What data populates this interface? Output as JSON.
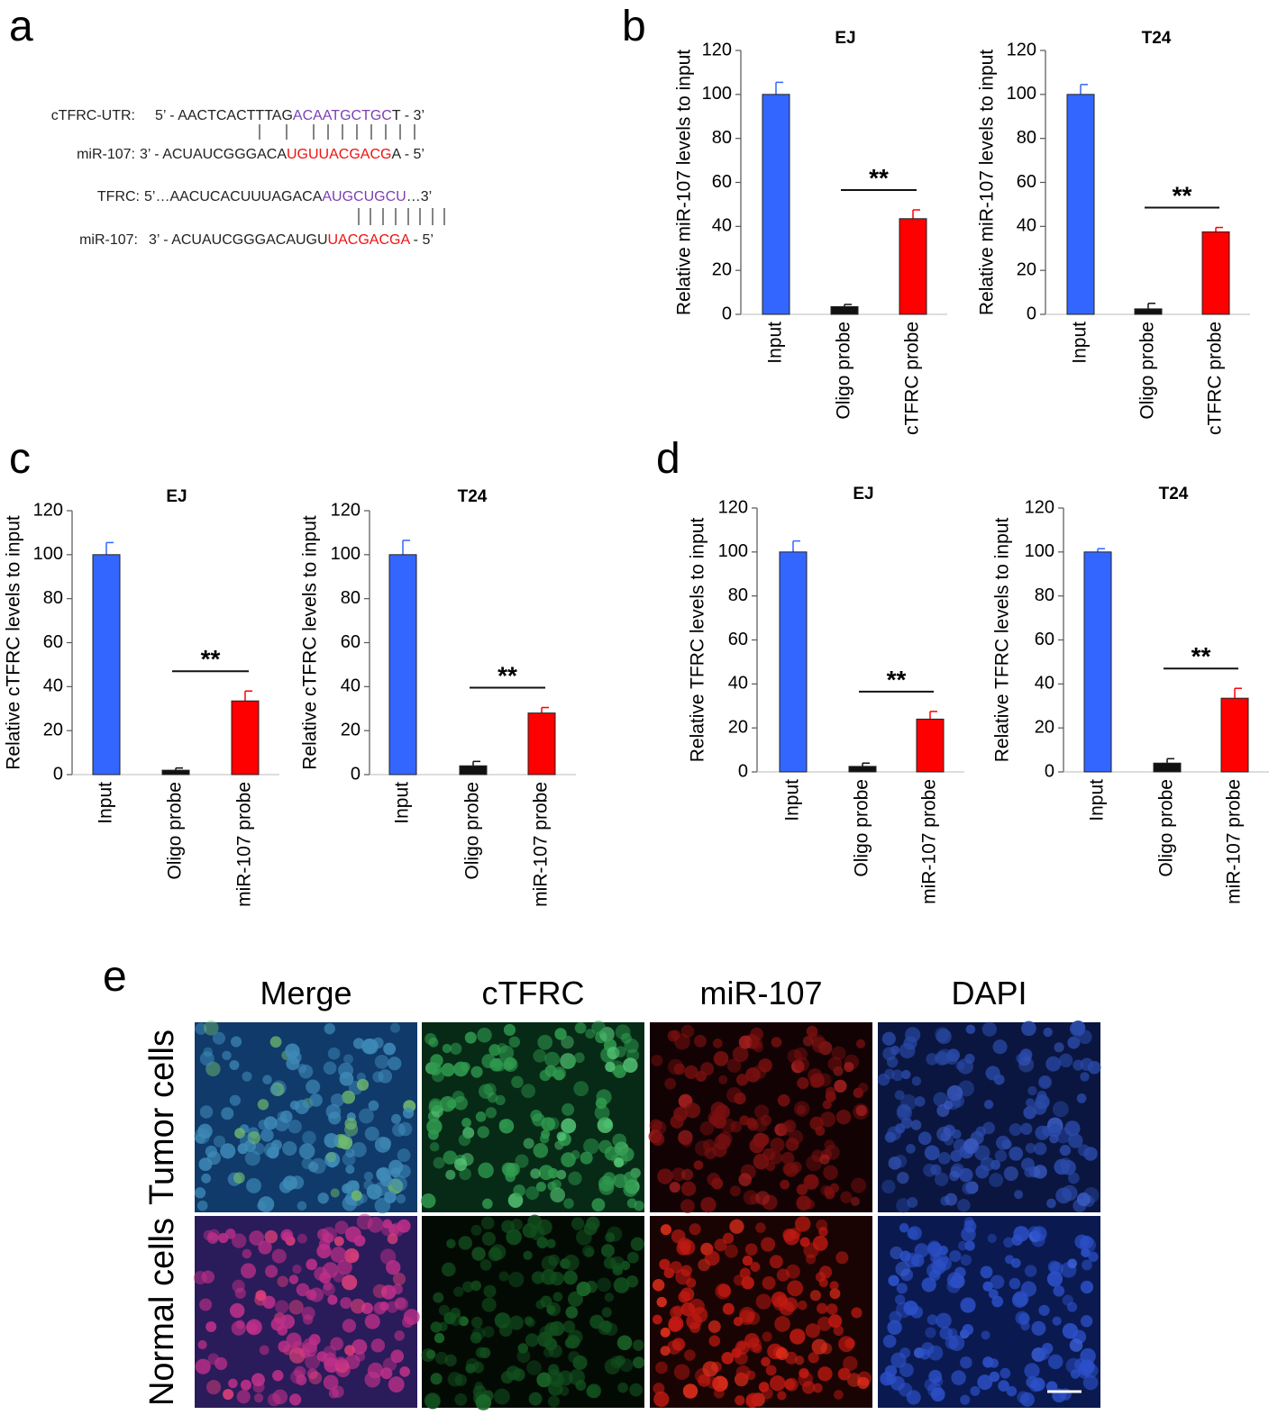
{
  "panel_labels": [
    "a",
    "b",
    "c",
    "d",
    "e"
  ],
  "sequence_alignment": [
    {
      "label": "cTFRC-UTR:",
      "segments": [
        {
          "text": "5’ - AACTCACTTTAG",
          "color": "#222222"
        },
        {
          "text": "ACAATGCTGC",
          "color": "#7b3fb5"
        },
        {
          "text": "T  - 3’",
          "color": "#222222"
        }
      ]
    },
    {
      "label": "miR-107:",
      "segments": [
        {
          "text": "3’ - ACUAUCGGGACA",
          "color": "#222222"
        },
        {
          "text": "UGUUACGACG",
          "color": "#ee1111"
        },
        {
          "text": "A  - 5’",
          "color": "#222222"
        }
      ]
    },
    {
      "label": "TFRC:",
      "segments": [
        {
          "text": "5’…AACUCACUUUAGACA",
          "color": "#222222"
        },
        {
          "text": "AUGCUGCU",
          "color": "#7b3fb5"
        },
        {
          "text": "…3’",
          "color": "#222222"
        }
      ]
    },
    {
      "label": "miR-107:",
      "segments": [
        {
          "text": "3’ - ACUAUCGGGACAUGU",
          "color": "#222222"
        },
        {
          "text": "UACGACGA",
          "color": "#ee1111"
        },
        {
          "text": " - 5’",
          "color": "#222222"
        }
      ]
    }
  ],
  "chart_data": [
    {
      "type": "bar",
      "title": "EJ",
      "y_label": "Relative miR-107 levels to input",
      "categories": [
        "Input",
        "Oligo probe",
        "cTFRC probe"
      ],
      "values": [
        100,
        3.5,
        43.5
      ],
      "errors": [
        5.5,
        1,
        4
      ],
      "colors": [
        "#3366ff",
        "#111111",
        "#ff0000"
      ],
      "ylim": [
        0,
        120
      ],
      "yticks": [
        0,
        20,
        40,
        60,
        80,
        100,
        120
      ],
      "significance": "**"
    },
    {
      "type": "bar",
      "title": "T24",
      "y_label": "Relative miR-107 levels to input",
      "categories": [
        "Input",
        "Oligo probe",
        "cTFRC probe"
      ],
      "values": [
        100,
        2.5,
        37.5
      ],
      "errors": [
        4.5,
        2.5,
        2
      ],
      "colors": [
        "#3366ff",
        "#111111",
        "#ff0000"
      ],
      "ylim": [
        0,
        120
      ],
      "yticks": [
        0,
        20,
        40,
        60,
        80,
        100,
        120
      ],
      "significance": "**"
    },
    {
      "type": "bar",
      "title": "EJ",
      "y_label": "Relative cTFRC levels to input",
      "categories": [
        "Input",
        "Oligo probe",
        "miR-107 probe"
      ],
      "values": [
        100,
        2,
        33.5
      ],
      "errors": [
        5.5,
        1,
        4.5
      ],
      "colors": [
        "#3366ff",
        "#111111",
        "#ff0000"
      ],
      "ylim": [
        0,
        120
      ],
      "yticks": [
        0,
        20,
        40,
        60,
        80,
        100,
        120
      ],
      "significance": "**"
    },
    {
      "type": "bar",
      "title": "T24",
      "y_label": "Relative cTFRC levels to input",
      "categories": [
        "Input",
        "Oligo probe",
        "miR-107 probe"
      ],
      "values": [
        100,
        4,
        28
      ],
      "errors": [
        6.5,
        2,
        2.5
      ],
      "colors": [
        "#3366ff",
        "#111111",
        "#ff0000"
      ],
      "ylim": [
        0,
        120
      ],
      "yticks": [
        0,
        20,
        40,
        60,
        80,
        100,
        120
      ],
      "significance": "**"
    },
    {
      "type": "bar",
      "title": "EJ",
      "y_label": "Relative TFRC levels to input",
      "categories": [
        "Input",
        "Oligo probe",
        "miR-107 probe"
      ],
      "values": [
        100,
        2.5,
        24
      ],
      "errors": [
        5,
        1.5,
        3.5
      ],
      "colors": [
        "#3366ff",
        "#111111",
        "#ff0000"
      ],
      "ylim": [
        0,
        120
      ],
      "yticks": [
        0,
        20,
        40,
        60,
        80,
        100,
        120
      ],
      "significance": "**"
    },
    {
      "type": "bar",
      "title": "T24",
      "y_label": "Relative TFRC levels to input",
      "categories": [
        "Input",
        "Oligo probe",
        "miR-107 probe"
      ],
      "values": [
        100,
        4,
        33.5
      ],
      "errors": [
        1.5,
        2,
        4.5
      ],
      "colors": [
        "#3366ff",
        "#111111",
        "#ff0000"
      ],
      "ylim": [
        0,
        120
      ],
      "yticks": [
        0,
        20,
        40,
        60,
        80,
        100,
        120
      ],
      "significance": "**"
    }
  ],
  "microscopy": {
    "columns": [
      "Merge",
      "cTFRC",
      "miR-107",
      "DAPI"
    ],
    "rows": [
      "Tumor cells",
      "Normal cells"
    ]
  }
}
